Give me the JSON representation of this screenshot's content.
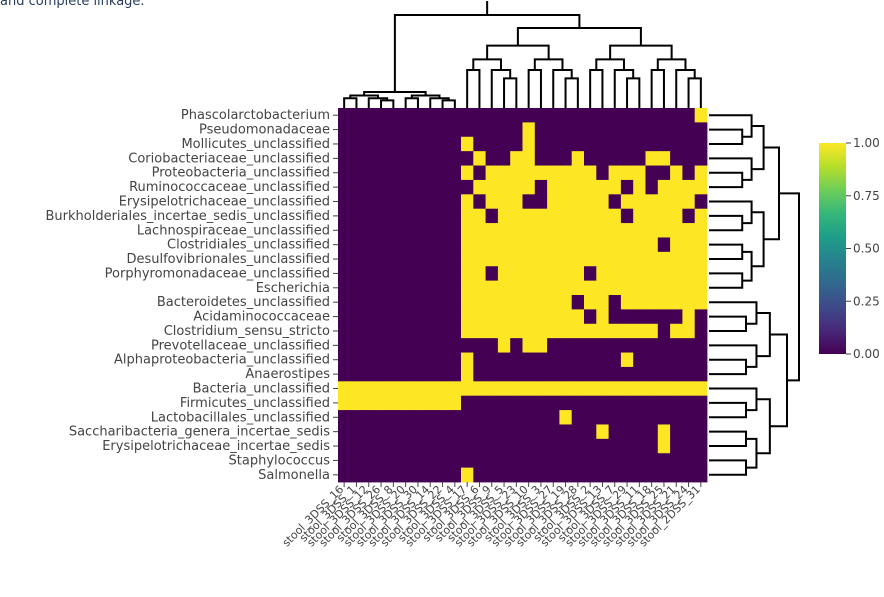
{
  "caption": "and complete linkage.",
  "chart_data": {
    "type": "heatmap",
    "title": "",
    "xlabel": "",
    "ylabel": "",
    "colorscale": "viridis",
    "colorscale_stops": [
      "#440154",
      "#482878",
      "#3e4a89",
      "#31688e",
      "#26828e",
      "#1f9e89",
      "#35b779",
      "#6ece58",
      "#b5de2b",
      "#fde725"
    ],
    "colorbar": {
      "ticks": [
        "1.00",
        "0.75",
        "0.50",
        "0.25",
        "0.00"
      ],
      "range": [
        0,
        1
      ]
    },
    "value_range": [
      0,
      1
    ],
    "row_dendrogram": true,
    "column_dendrogram": true,
    "y_labels": [
      "Phascolarctobacterium",
      "Pseudomonadaceae",
      "Mollicutes_unclassified",
      "Coriobacteriaceae_unclassified",
      "Proteobacteria_unclassified",
      "Ruminococcaceae_unclassified",
      "Erysipelotrichaceae_unclassified",
      "Burkholderiales_incertae_sedis_unclassified",
      "Lachnospiraceae_unclassified",
      "Clostridiales_unclassified",
      "Desulfovibrionales_unclassified",
      "Porphyromonadaceae_unclassified",
      "Escherichia",
      "Bacteroidetes_unclassified",
      "Acidaminococcaceae",
      "Clostridium_sensu_stricto",
      "Prevotellaceae_unclassified",
      "Alphaproteobacteria_unclassified",
      "Anaerostipes",
      "Bacteria_unclassified",
      "Firmicutes_unclassified",
      "Lactobacillales_unclassified",
      "Saccharibacteria_genera_incertae_sedis",
      "Erysipelotrichaceae_incertae_sedis",
      "Staphylococcus",
      "Salmonella"
    ],
    "x_labels": [
      "stool_3DSS_16",
      "stool_3DSS_1",
      "stool_3DSS_12",
      "stool_3DSS_26",
      "stool_3DSS_8",
      "stool_3DSS_20",
      "stool_3DSS_30",
      "stool_3DSS_14",
      "stool_3DSS_22",
      "stool_3DSS_4",
      "stool_3DSS_17",
      "stool_3DSS_6",
      "stool_3DSS_9",
      "stool_3DSS_5",
      "stool_3DSS_23",
      "stool_3DSS_10",
      "stool_3DSS_3",
      "stool_3DSS_27",
      "stool_3DSS_19",
      "stool_3DSS_28",
      "stool_3DSS_2",
      "stool_3DSS_13",
      "stool_3DSS_7",
      "stool_3DSS_29",
      "stool_3DSS_11",
      "stool_3DSS_18",
      "stool_3DSS_25",
      "stool_3DSS_21",
      "stool_3DSS_24",
      "stool_2DSS_31"
    ],
    "matrix": [
      [
        0,
        0,
        0,
        0,
        0,
        0,
        0,
        0,
        0,
        0,
        0,
        0,
        0,
        0,
        0,
        0,
        0,
        0,
        0,
        0,
        0,
        0,
        0,
        0,
        0,
        0,
        0,
        0,
        0,
        1
      ],
      [
        0,
        0,
        0,
        0,
        0,
        0,
        0,
        0,
        0,
        0,
        0,
        0,
        0,
        0,
        0,
        1,
        0,
        0,
        0,
        0,
        0,
        0,
        0,
        0,
        0,
        0,
        0,
        0,
        0,
        0
      ],
      [
        0,
        0,
        0,
        0,
        0,
        0,
        0,
        0,
        0,
        0,
        1,
        0,
        0,
        0,
        0,
        1,
        0,
        0,
        0,
        0,
        0,
        0,
        0,
        0,
        0,
        0,
        0,
        0,
        0,
        0
      ],
      [
        0,
        0,
        0,
        0,
        0,
        0,
        0,
        0,
        0,
        0,
        0,
        1,
        0,
        0,
        1,
        1,
        0,
        0,
        0,
        1,
        0,
        0,
        0,
        0,
        0,
        1,
        1,
        0,
        0,
        0
      ],
      [
        0,
        0,
        0,
        0,
        0,
        0,
        0,
        0,
        0,
        0,
        1,
        0,
        1,
        1,
        1,
        1,
        1,
        1,
        1,
        1,
        1,
        0,
        1,
        1,
        1,
        0,
        0,
        1,
        0,
        1
      ],
      [
        0,
        0,
        0,
        0,
        0,
        0,
        0,
        0,
        0,
        0,
        0,
        1,
        1,
        1,
        1,
        1,
        0,
        1,
        1,
        1,
        1,
        1,
        1,
        0,
        1,
        0,
        1,
        1,
        1,
        1
      ],
      [
        0,
        0,
        0,
        0,
        0,
        0,
        0,
        0,
        0,
        0,
        1,
        0,
        1,
        1,
        1,
        0,
        0,
        1,
        1,
        1,
        1,
        1,
        0,
        1,
        1,
        1,
        1,
        1,
        1,
        0
      ],
      [
        0,
        0,
        0,
        0,
        0,
        0,
        0,
        0,
        0,
        0,
        1,
        1,
        0,
        1,
        1,
        1,
        1,
        1,
        1,
        1,
        1,
        1,
        1,
        0,
        1,
        1,
        1,
        1,
        0,
        1
      ],
      [
        0,
        0,
        0,
        0,
        0,
        0,
        0,
        0,
        0,
        0,
        1,
        1,
        1,
        1,
        1,
        1,
        1,
        1,
        1,
        1,
        1,
        1,
        1,
        1,
        1,
        1,
        1,
        1,
        1,
        1
      ],
      [
        0,
        0,
        0,
        0,
        0,
        0,
        0,
        0,
        0,
        0,
        1,
        1,
        1,
        1,
        1,
        1,
        1,
        1,
        1,
        1,
        1,
        1,
        1,
        1,
        1,
        1,
        0,
        1,
        1,
        1
      ],
      [
        0,
        0,
        0,
        0,
        0,
        0,
        0,
        0,
        0,
        0,
        1,
        1,
        1,
        1,
        1,
        1,
        1,
        1,
        1,
        1,
        1,
        1,
        1,
        1,
        1,
        1,
        1,
        1,
        1,
        1
      ],
      [
        0,
        0,
        0,
        0,
        0,
        0,
        0,
        0,
        0,
        0,
        1,
        1,
        0,
        1,
        1,
        1,
        1,
        1,
        1,
        1,
        0,
        1,
        1,
        1,
        1,
        1,
        1,
        1,
        1,
        1
      ],
      [
        0,
        0,
        0,
        0,
        0,
        0,
        0,
        0,
        0,
        0,
        1,
        1,
        1,
        1,
        1,
        1,
        1,
        1,
        1,
        1,
        1,
        1,
        1,
        1,
        1,
        1,
        1,
        1,
        1,
        1
      ],
      [
        0,
        0,
        0,
        0,
        0,
        0,
        0,
        0,
        0,
        0,
        1,
        1,
        1,
        1,
        1,
        1,
        1,
        1,
        1,
        0,
        1,
        1,
        0,
        1,
        1,
        1,
        1,
        1,
        1,
        1
      ],
      [
        0,
        0,
        0,
        0,
        0,
        0,
        0,
        0,
        0,
        0,
        1,
        1,
        1,
        1,
        1,
        1,
        1,
        1,
        1,
        1,
        0,
        1,
        0,
        0,
        0,
        0,
        0,
        0,
        1,
        0
      ],
      [
        0,
        0,
        0,
        0,
        0,
        0,
        0,
        0,
        0,
        0,
        1,
        1,
        1,
        1,
        1,
        1,
        1,
        1,
        1,
        1,
        1,
        1,
        1,
        1,
        1,
        1,
        0,
        1,
        1,
        0
      ],
      [
        0,
        0,
        0,
        0,
        0,
        0,
        0,
        0,
        0,
        0,
        0,
        0,
        0,
        1,
        0,
        1,
        1,
        0,
        0,
        0,
        0,
        0,
        0,
        0,
        0,
        0,
        0,
        0,
        0,
        0
      ],
      [
        0,
        0,
        0,
        0,
        0,
        0,
        0,
        0,
        0,
        0,
        1,
        0,
        0,
        0,
        0,
        0,
        0,
        0,
        0,
        0,
        0,
        0,
        0,
        1,
        0,
        0,
        0,
        0,
        0,
        0
      ],
      [
        0,
        0,
        0,
        0,
        0,
        0,
        0,
        0,
        0,
        0,
        1,
        0,
        0,
        0,
        0,
        0,
        0,
        0,
        0,
        0,
        0,
        0,
        0,
        0,
        0,
        0,
        0,
        0,
        0,
        0
      ],
      [
        1,
        1,
        1,
        1,
        1,
        1,
        1,
        1,
        1,
        1,
        1,
        1,
        1,
        1,
        1,
        1,
        1,
        1,
        1,
        1,
        1,
        1,
        1,
        1,
        1,
        1,
        1,
        1,
        1,
        1
      ],
      [
        1,
        1,
        1,
        1,
        1,
        1,
        1,
        1,
        1,
        1,
        0,
        0,
        0,
        0,
        0,
        0,
        0,
        0,
        0,
        0,
        0,
        0,
        0,
        0,
        0,
        0,
        0,
        0,
        0,
        0
      ],
      [
        0,
        0,
        0,
        0,
        0,
        0,
        0,
        0,
        0,
        0,
        0,
        0,
        0,
        0,
        0,
        0,
        0,
        0,
        1,
        0,
        0,
        0,
        0,
        0,
        0,
        0,
        0,
        0,
        0,
        0
      ],
      [
        0,
        0,
        0,
        0,
        0,
        0,
        0,
        0,
        0,
        0,
        0,
        0,
        0,
        0,
        0,
        0,
        0,
        0,
        0,
        0,
        0,
        1,
        0,
        0,
        0,
        0,
        1,
        0,
        0,
        0
      ],
      [
        0,
        0,
        0,
        0,
        0,
        0,
        0,
        0,
        0,
        0,
        0,
        0,
        0,
        0,
        0,
        0,
        0,
        0,
        0,
        0,
        0,
        0,
        0,
        0,
        0,
        0,
        1,
        0,
        0,
        0
      ],
      [
        0,
        0,
        0,
        0,
        0,
        0,
        0,
        0,
        0,
        0,
        0,
        0,
        0,
        0,
        0,
        0,
        0,
        0,
        0,
        0,
        0,
        0,
        0,
        0,
        0,
        0,
        0,
        0,
        0,
        0
      ],
      [
        0,
        0,
        0,
        0,
        0,
        0,
        0,
        0,
        0,
        0,
        1,
        0,
        0,
        0,
        0,
        0,
        0,
        0,
        0,
        0,
        0,
        0,
        0,
        0,
        0,
        0,
        0,
        0,
        0,
        0
      ]
    ]
  }
}
